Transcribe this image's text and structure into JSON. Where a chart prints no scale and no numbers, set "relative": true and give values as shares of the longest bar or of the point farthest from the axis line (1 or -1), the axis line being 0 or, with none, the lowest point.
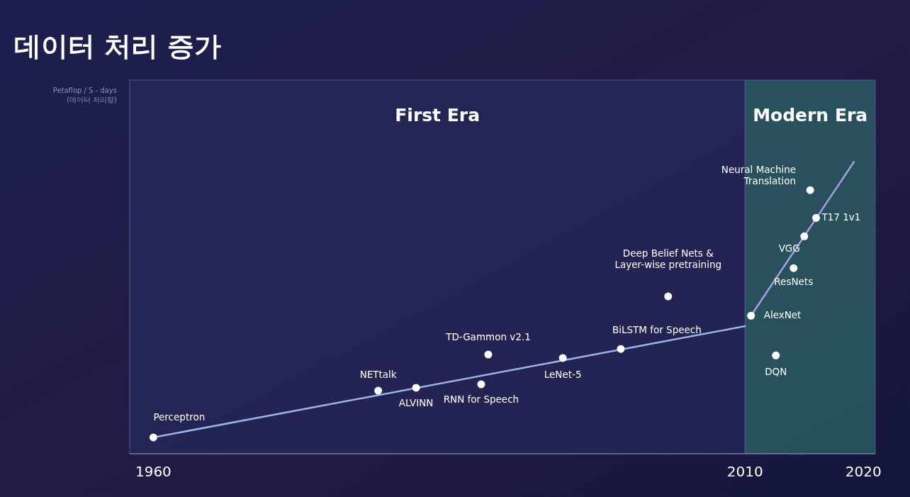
{
  "chart_data": {
    "type": "scatter",
    "title": "데이터 처리 증가",
    "relative": true,
    "xlim": [
      1958,
      2021
    ],
    "xticks": [
      1960,
      2010,
      2020
    ],
    "bands": [
      {
        "axis": "x",
        "from": 1958,
        "to": 2010,
        "label": "First Era",
        "color": "#24285a"
      },
      {
        "axis": "x",
        "from": 2010,
        "to": 2021,
        "label": "Modern Era",
        "color": "#2c6466"
      }
    ],
    "series": [
      {
        "type": "line",
        "color": "#9ab4ec",
        "marker": "none",
        "x": [
          1960,
          2010
        ],
        "values": [
          0.056,
          0.437
        ]
      },
      {
        "type": "line",
        "color": "#a99ce6",
        "marker": "none",
        "x": [
          2010.5,
          2019.2
        ],
        "values": [
          0.473,
          1.0
        ]
      },
      {
        "type": "scatter",
        "color": "#ffffff",
        "marker": "circle",
        "x": [
          1960,
          1979,
          1982.2,
          1987.7,
          1988.3,
          1994.6,
          1999.5,
          2003.5,
          2010.5,
          2012.6,
          2014.1,
          2015,
          2015.5,
          2016
        ],
        "values": [
          0.056,
          0.216,
          0.226,
          0.238,
          0.34,
          0.328,
          0.359,
          0.539,
          0.473,
          0.337,
          0.636,
          0.745,
          0.903,
          0.808
        ]
      }
    ],
    "annotations": [
      "Petaflop / S - days\n(데이터 처리량)",
      {
        "text": "Perceptron",
        "x": 1960,
        "y": 0.056
      },
      {
        "text": "NETtalk",
        "x": 1979,
        "y": 0.216
      },
      {
        "text": "ALVINN",
        "x": 1982.2,
        "y": 0.226
      },
      {
        "text": "RNN for Speech",
        "x": 1987.7,
        "y": 0.238
      },
      {
        "text": "TD-Gammon v2.1",
        "x": 1988.3,
        "y": 0.34
      },
      {
        "text": "LeNet-5",
        "x": 1994.6,
        "y": 0.328
      },
      {
        "text": "BiLSTM for Speech",
        "x": 1999.5,
        "y": 0.359
      },
      {
        "text": "Deep Belief Nets &\nLayer-wise pretraining",
        "x": 2003.5,
        "y": 0.539
      },
      {
        "text": "AlexNet",
        "x": 2010.5,
        "y": 0.473
      },
      {
        "text": "DQN",
        "x": 2012.6,
        "y": 0.337
      },
      {
        "text": "ResNets",
        "x": 2014.1,
        "y": 0.636
      },
      {
        "text": "VGG",
        "x": 2015,
        "y": 0.745
      },
      {
        "text": "Neural Machine\nTranslation",
        "x": 2015.5,
        "y": 0.903
      },
      {
        "text": "T17 1v1",
        "x": 2016,
        "y": 0.808
      }
    ]
  }
}
